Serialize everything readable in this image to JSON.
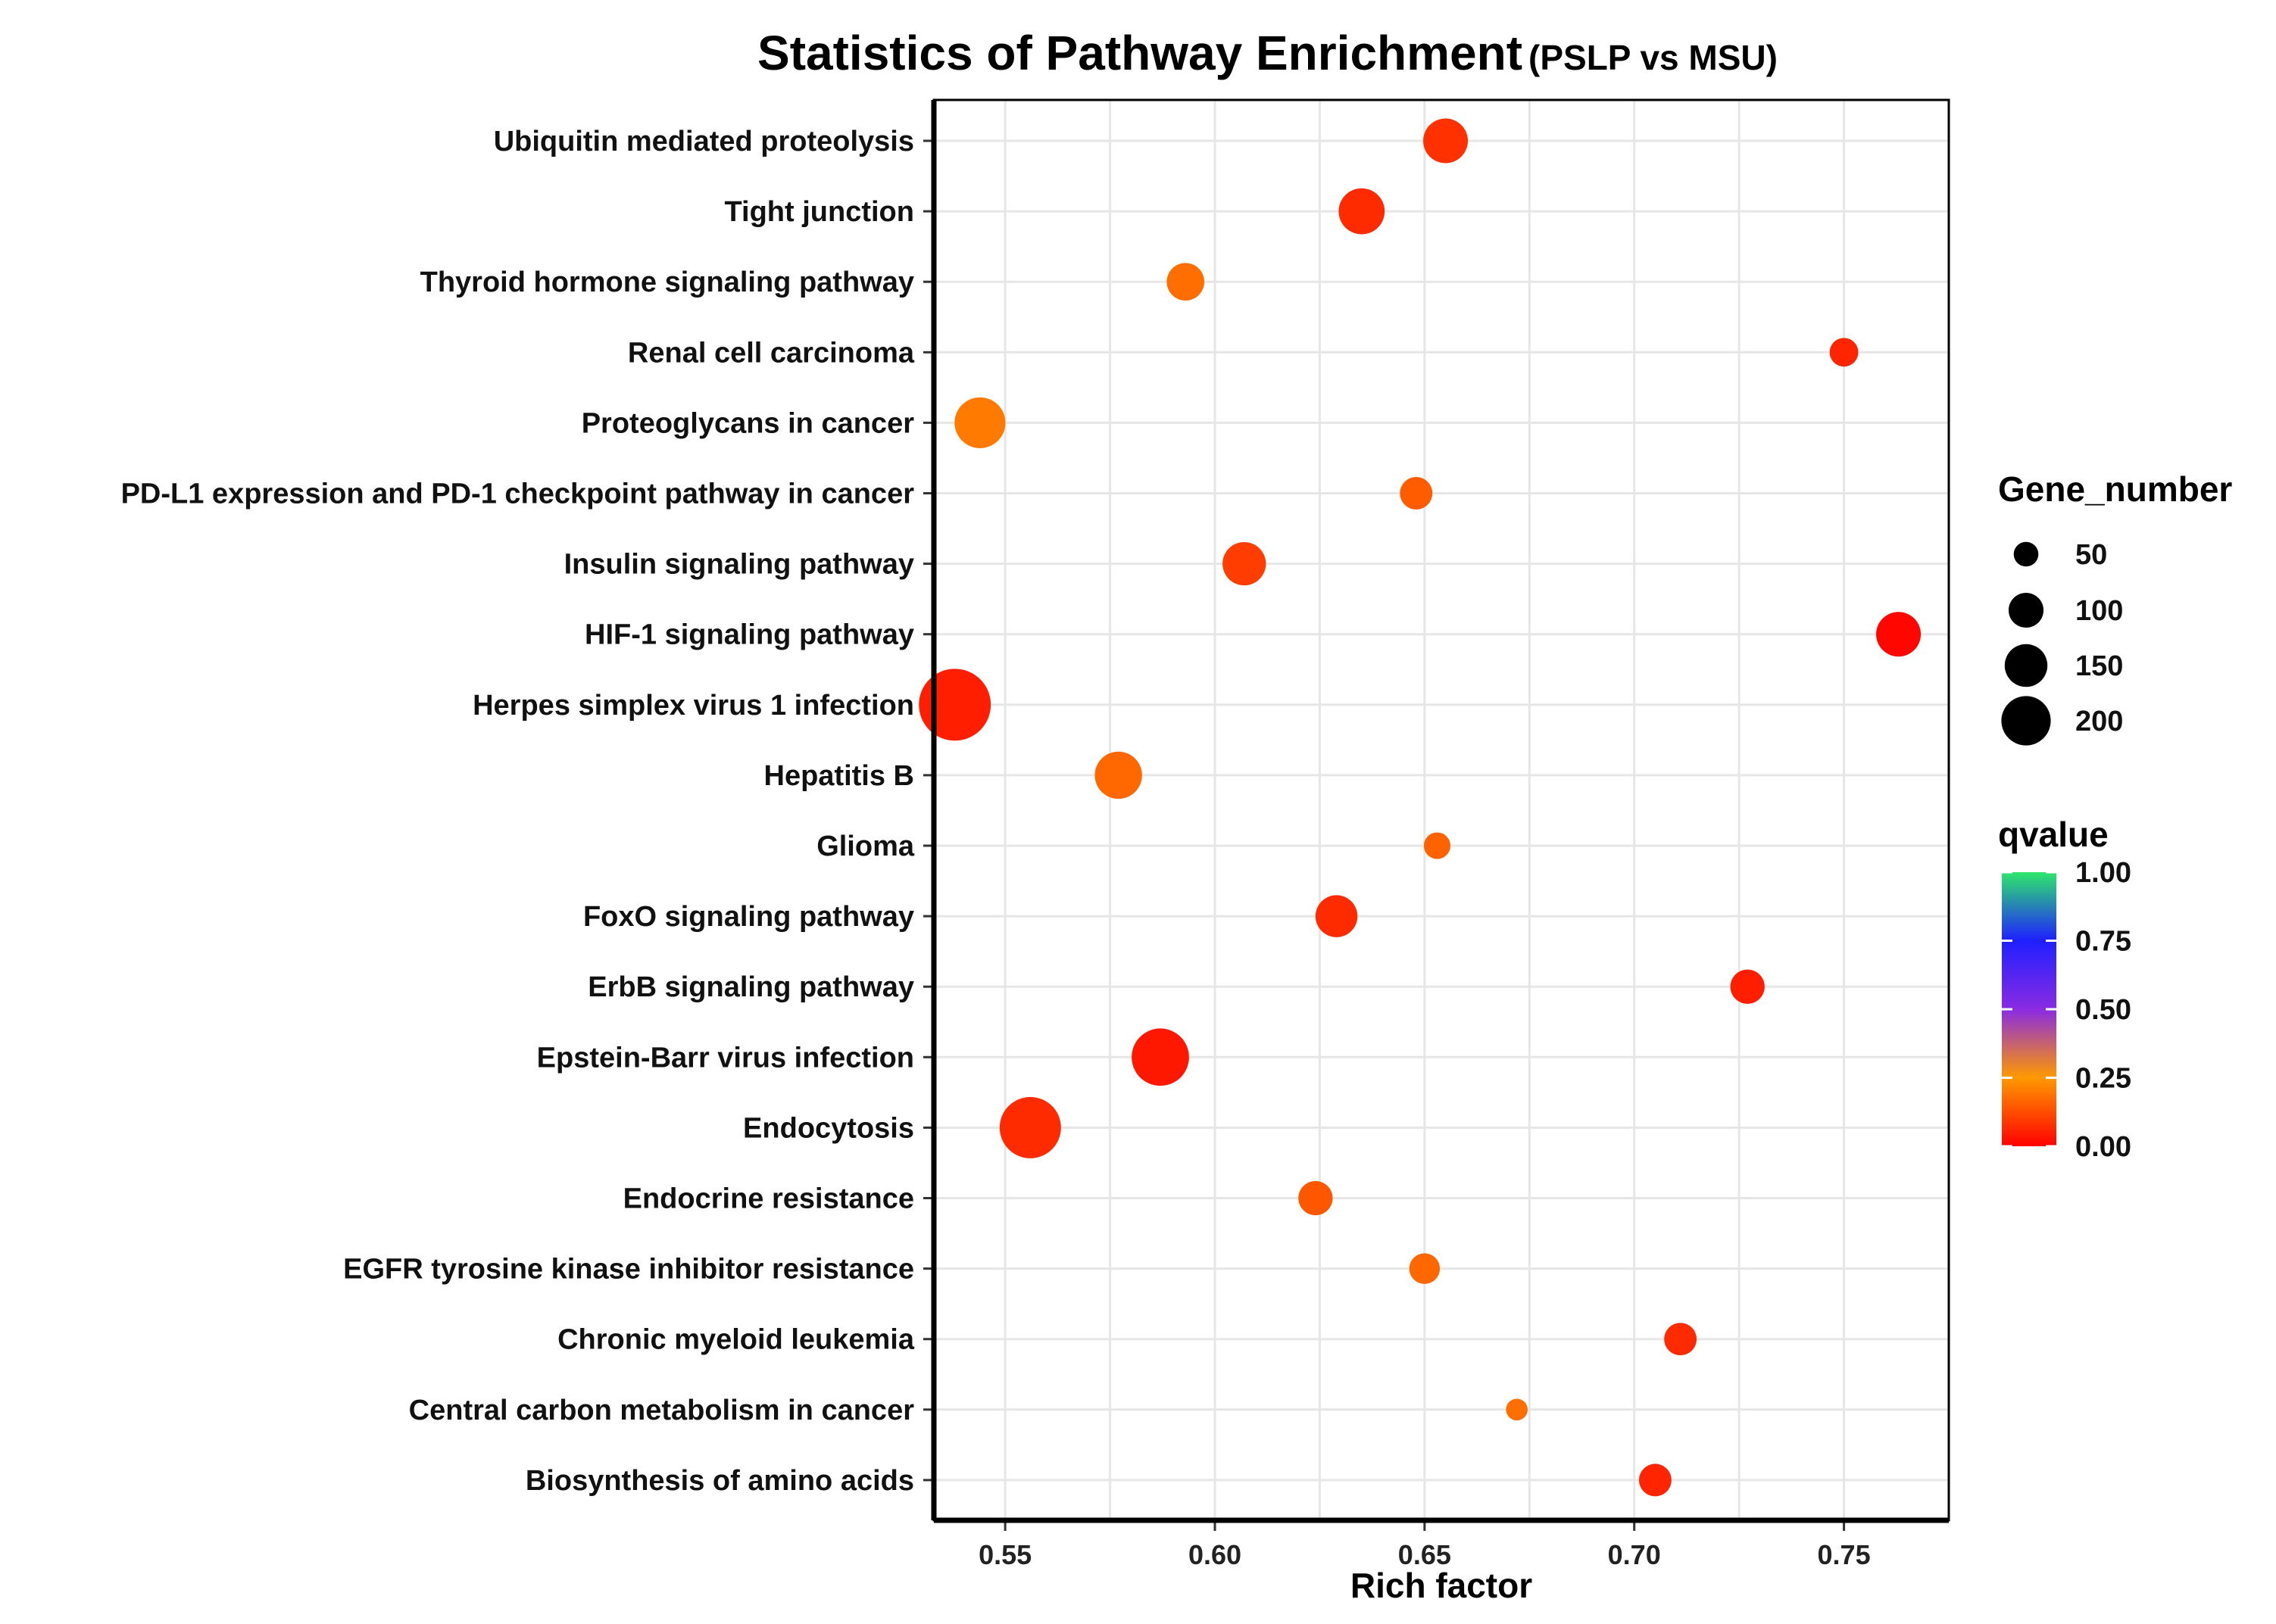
{
  "chart_data": {
    "type": "scatter",
    "title": "Statistics of Pathway Enrichment",
    "subtitle": "(PSLP vs MSU)",
    "xlabel": "Rich factor",
    "ylabel": "",
    "xlim": [
      0.533,
      0.775
    ],
    "xticks": [
      0.55,
      0.6,
      0.65,
      0.7,
      0.75
    ],
    "xtick_labels": [
      "0.55",
      "0.60",
      "0.65",
      "0.70",
      "0.75"
    ],
    "grid": true,
    "legend_placement": "right",
    "size_legend": {
      "title": "Gene_number",
      "values": [
        50,
        100,
        150,
        200
      ],
      "labels": [
        "50",
        "100",
        "150",
        "200"
      ]
    },
    "color_legend": {
      "title": "qvalue",
      "stops": [
        {
          "value": 0.0,
          "color": "#ff0000"
        },
        {
          "value": 0.25,
          "color": "#ff9900"
        },
        {
          "value": 0.5,
          "color": "#8a2be2"
        },
        {
          "value": 0.75,
          "color": "#1f1fff"
        },
        {
          "value": 1.0,
          "color": "#2ee66b"
        }
      ],
      "ticks": [
        1.0,
        0.75,
        0.5,
        0.25,
        0.0
      ],
      "tick_labels": [
        "1.00",
        "0.75",
        "0.50",
        "0.25",
        "0.00"
      ]
    },
    "points": [
      {
        "pathway": "Ubiquitin mediated proteolysis",
        "rich_factor": 0.655,
        "gene_number": 85,
        "qvalue": 0.08
      },
      {
        "pathway": "Tight junction",
        "rich_factor": 0.635,
        "gene_number": 90,
        "qvalue": 0.07
      },
      {
        "pathway": "Thyroid hormone signaling pathway",
        "rich_factor": 0.593,
        "gene_number": 60,
        "qvalue": 0.18
      },
      {
        "pathway": "Renal cell carcinoma",
        "rich_factor": 0.75,
        "gene_number": 35,
        "qvalue": 0.06
      },
      {
        "pathway": "Proteoglycans in cancer",
        "rich_factor": 0.544,
        "gene_number": 110,
        "qvalue": 0.2
      },
      {
        "pathway": "PD-L1 expression and PD-1 checkpoint pathway in cancer",
        "rich_factor": 0.648,
        "gene_number": 45,
        "qvalue": 0.15
      },
      {
        "pathway": "Insulin signaling pathway",
        "rich_factor": 0.607,
        "gene_number": 80,
        "qvalue": 0.1
      },
      {
        "pathway": "HIF-1 signaling pathway",
        "rich_factor": 0.763,
        "gene_number": 85,
        "qvalue": 0.01
      },
      {
        "pathway": "Herpes simplex virus 1 infection",
        "rich_factor": 0.538,
        "gene_number": 220,
        "qvalue": 0.05
      },
      {
        "pathway": "Hepatitis B",
        "rich_factor": 0.577,
        "gene_number": 95,
        "qvalue": 0.17
      },
      {
        "pathway": "Glioma",
        "rich_factor": 0.653,
        "gene_number": 30,
        "qvalue": 0.16
      },
      {
        "pathway": "FoxO signaling pathway",
        "rich_factor": 0.629,
        "gene_number": 75,
        "qvalue": 0.07
      },
      {
        "pathway": "ErbB signaling pathway",
        "rich_factor": 0.727,
        "gene_number": 50,
        "qvalue": 0.05
      },
      {
        "pathway": "Epstein-Barr virus infection",
        "rich_factor": 0.587,
        "gene_number": 140,
        "qvalue": 0.04
      },
      {
        "pathway": "Endocytosis",
        "rich_factor": 0.556,
        "gene_number": 160,
        "qvalue": 0.07
      },
      {
        "pathway": "Endocrine resistance",
        "rich_factor": 0.624,
        "gene_number": 50,
        "qvalue": 0.14
      },
      {
        "pathway": "EGFR tyrosine kinase inhibitor resistance",
        "rich_factor": 0.65,
        "gene_number": 40,
        "qvalue": 0.17
      },
      {
        "pathway": "Chronic myeloid leukemia",
        "rich_factor": 0.711,
        "gene_number": 45,
        "qvalue": 0.07
      },
      {
        "pathway": "Central carbon metabolism in cancer",
        "rich_factor": 0.672,
        "gene_number": 20,
        "qvalue": 0.18
      },
      {
        "pathway": "Biosynthesis of amino acids",
        "rich_factor": 0.705,
        "gene_number": 45,
        "qvalue": 0.06
      }
    ]
  }
}
